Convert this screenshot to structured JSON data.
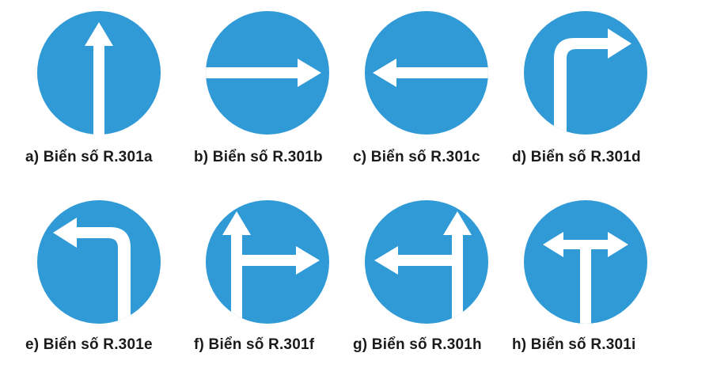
{
  "colors": {
    "sign_blue": "#2f9ad6",
    "arrow_white": "#ffffff",
    "text": "#1a1a1a"
  },
  "signs": [
    {
      "code": "R.301a",
      "caption": "a) Biển số R.301a",
      "depicts": "arrow-straight-ahead"
    },
    {
      "code": "R.301b",
      "caption": "b) Biển số R.301b",
      "depicts": "arrow-right"
    },
    {
      "code": "R.301c",
      "caption": "c) Biển số R.301c",
      "depicts": "arrow-left"
    },
    {
      "code": "R.301d",
      "caption": "d) Biển số R.301d",
      "depicts": "arrow-turn-right"
    },
    {
      "code": "R.301e",
      "caption": "e) Biển số R.301e",
      "depicts": "arrow-turn-left"
    },
    {
      "code": "R.301f",
      "caption": "f) Biển số R.301f",
      "depicts": "arrow-straight-or-right"
    },
    {
      "code": "R.301h",
      "caption": "g) Biển số R.301h",
      "depicts": "arrow-straight-or-left"
    },
    {
      "code": "R.301i",
      "caption": "h) Biển số R.301i",
      "depicts": "arrow-left-or-right"
    }
  ]
}
